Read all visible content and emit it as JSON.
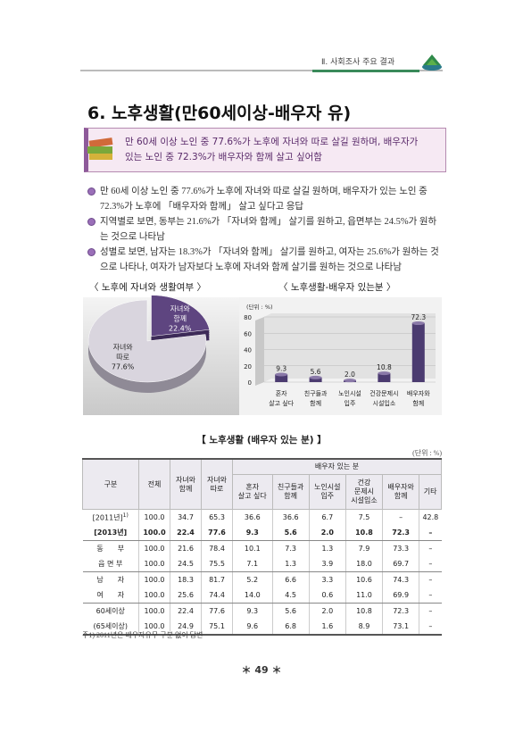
{
  "header": {
    "section": "Ⅱ. 사회조사 주요 결과"
  },
  "title": "6. 노후생활(만60세이상-배우자 유)",
  "summary": "만 60세 이상 노인 중 77.6%가 노후에 자녀와 따로 살길 원하며, 배우자가\n있는 노인 중 72.3%가 배우자와 함께 살고 싶어함",
  "bullets": [
    "만 60세 이상 노인 중 77.6%가 노후에 자녀와 따로 살길 원하며, 배우자가 있는 노인 중 72.3%가 노후에 「배우자와 함께」 살고 싶다고 응답",
    "지역별로 보면, 동부는 21.6%가 「자녀와 함께」 살기를 원하고, 읍면부는 24.5%가 원하는 것으로 나타남",
    "성별로 보면, 남자는 18.3%가 「자녀와 함께」 살기를 원하고, 여자는 25.6%가 원하는 것으로 나타나, 여자가 남자보다 노후에 자녀와 함께 살기를 원하는 것으로 나타남"
  ],
  "chart_data": [
    {
      "type": "pie",
      "title": "〈 노후에 자녀와 생활여부 〉",
      "categories": [
        "자녀와\n함께",
        "자녀와\n따로"
      ],
      "values": [
        22.4,
        77.6
      ],
      "value_labels": [
        "22.4%",
        "77.6%"
      ],
      "colors": [
        "#5e4580",
        "#d9d5de"
      ]
    },
    {
      "type": "bar",
      "title": "〈 노후생활-배우자 있는분 〉",
      "subtitle": "(단위 : %)",
      "categories": [
        "혼자\n살고 싶다",
        "친구들과\n함께",
        "노인시설\n입주",
        "건강문제시\n시설입소",
        "배우자와\n함께"
      ],
      "values": [
        9.3,
        5.6,
        2.0,
        10.8,
        72.3
      ],
      "value_labels": [
        "9.3",
        "5.6",
        "2.0",
        "10.8",
        "72.3"
      ],
      "color": "#4b3b70",
      "ylim": [
        0,
        80
      ],
      "yticks": [
        0,
        20,
        40,
        60,
        80
      ]
    }
  ],
  "table": {
    "title": "【 노후생활 (배우자 있는 분) 】",
    "unit": "(단위 : %)",
    "header_top": [
      "구분",
      "전체",
      "자녀와\n함께",
      "자녀와\n따로",
      "배우자 있는 분"
    ],
    "header_sub": [
      "혼자\n살고 싶다",
      "친구들과\n함께",
      "노인시설\n입주",
      "건강\n문제시\n시설입소",
      "배우자와\n함께",
      "기타"
    ],
    "rows": [
      [
        "[2011년]",
        "100.0",
        "34.7",
        "65.3",
        "36.6",
        "36.6",
        "6.7",
        "7.5",
        "–",
        "42.8"
      ],
      [
        "[2013년]",
        "100.0",
        "22.4",
        "77.6",
        "9.3",
        "5.6",
        "2.0",
        "10.8",
        "72.3",
        "–"
      ],
      [
        "동　　부",
        "100.0",
        "21.6",
        "78.4",
        "10.1",
        "7.3",
        "1.3",
        "7.9",
        "73.3",
        "–"
      ],
      [
        "읍 면 부",
        "100.0",
        "24.5",
        "75.5",
        "7.1",
        "1.3",
        "3.9",
        "18.0",
        "69.7",
        "–"
      ],
      [
        "남　　자",
        "100.0",
        "18.3",
        "81.7",
        "5.2",
        "6.6",
        "3.3",
        "10.6",
        "74.3",
        "–"
      ],
      [
        "여　　자",
        "100.0",
        "25.6",
        "74.4",
        "14.0",
        "4.5",
        "0.6",
        "11.0",
        "69.9",
        "–"
      ],
      [
        "60세이상",
        "100.0",
        "22.4",
        "77.6",
        "9.3",
        "5.6",
        "2.0",
        "10.8",
        "72.3",
        "–"
      ],
      [
        "(65세이상)",
        "100.0",
        "24.9",
        "75.1",
        "9.6",
        "6.8",
        "1.6",
        "8.9",
        "73.1",
        "–"
      ]
    ],
    "row_note": "1)"
  },
  "footnote": "주1) 2011년은 배우자유무 구분 없이 답변",
  "page_number": "＊ 49 ＊"
}
